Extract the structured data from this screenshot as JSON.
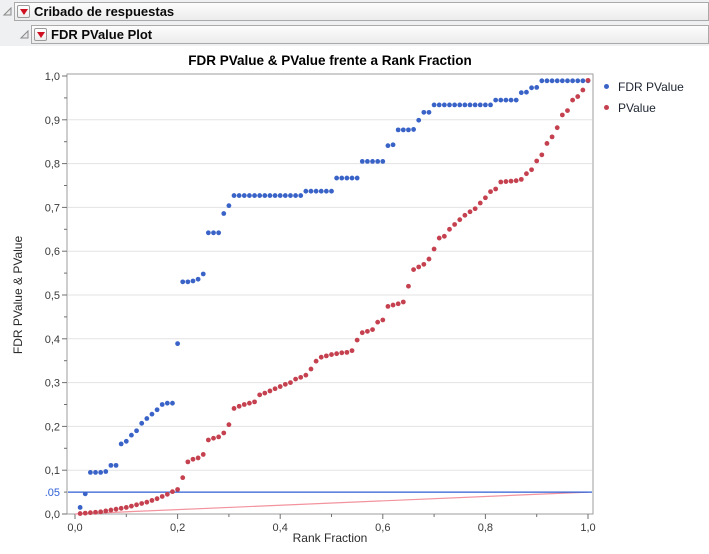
{
  "headers": {
    "level1": "Cribado de respuestas",
    "level2": "FDR PValue Plot"
  },
  "chart_data": {
    "type": "scatter",
    "title": "FDR PValue & PValue frente a Rank Fraction",
    "xlabel": "Rank Fraction",
    "ylabel": "FDR PValue & PValue",
    "xlim": [
      0,
      1
    ],
    "ylim": [
      0,
      1
    ],
    "grid": "horizontal-only",
    "legend_position": "right-top",
    "x_ticks": {
      "values": [
        0,
        0.2,
        0.4,
        0.6,
        0.8,
        1.0
      ],
      "labels": [
        "0,0",
        "0,2",
        "0,4",
        "0,6",
        "0,8",
        "1,0"
      ],
      "minor_step": 0.1
    },
    "y_ticks": {
      "values": [
        0,
        0.1,
        0.2,
        0.3,
        0.4,
        0.5,
        0.6,
        0.7,
        0.8,
        0.9,
        1.0
      ],
      "labels": [
        "0,0",
        "0,1",
        "0,2",
        "0,3",
        "0,4",
        "0,5",
        "0,6",
        "0,7",
        "0,8",
        "0,9",
        "1,0"
      ],
      "minor_step": 0.05
    },
    "x_note": "both series plotted at rank fraction x = i/100 for i = 1..100",
    "series": [
      {
        "name": "FDR PValue",
        "color": "#3A63C8",
        "x_step": 0.01,
        "values": [
          0.015,
          0.046,
          0.095,
          0.095,
          0.095,
          0.097,
          0.111,
          0.111,
          0.16,
          0.166,
          0.18,
          0.19,
          0.207,
          0.218,
          0.228,
          0.238,
          0.25,
          0.253,
          0.253,
          0.389,
          0.53,
          0.53,
          0.532,
          0.536,
          0.548,
          0.642,
          0.642,
          0.642,
          0.686,
          0.704,
          0.727,
          0.727,
          0.727,
          0.727,
          0.727,
          0.727,
          0.727,
          0.727,
          0.727,
          0.727,
          0.727,
          0.727,
          0.727,
          0.727,
          0.737,
          0.737,
          0.737,
          0.737,
          0.737,
          0.737,
          0.767,
          0.767,
          0.767,
          0.767,
          0.767,
          0.805,
          0.805,
          0.805,
          0.805,
          0.805,
          0.841,
          0.843,
          0.877,
          0.877,
          0.877,
          0.878,
          0.899,
          0.917,
          0.917,
          0.934,
          0.934,
          0.934,
          0.934,
          0.934,
          0.934,
          0.934,
          0.934,
          0.934,
          0.934,
          0.934,
          0.934,
          0.945,
          0.945,
          0.945,
          0.945,
          0.945,
          0.962,
          0.963,
          0.973,
          0.974,
          0.989,
          0.989,
          0.989,
          0.989,
          0.989,
          0.989,
          0.989,
          0.989,
          0.989,
          0.989
        ]
      },
      {
        "name": "PValue",
        "color": "#C5414F",
        "x_step": 0.01,
        "values": [
          0.001,
          0.002,
          0.003,
          0.004,
          0.005,
          0.007,
          0.009,
          0.011,
          0.013,
          0.015,
          0.018,
          0.021,
          0.024,
          0.027,
          0.031,
          0.035,
          0.04,
          0.045,
          0.051,
          0.056,
          0.083,
          0.119,
          0.125,
          0.128,
          0.136,
          0.169,
          0.173,
          0.176,
          0.185,
          0.204,
          0.241,
          0.246,
          0.25,
          0.253,
          0.256,
          0.272,
          0.276,
          0.281,
          0.286,
          0.291,
          0.296,
          0.3,
          0.308,
          0.312,
          0.317,
          0.331,
          0.349,
          0.358,
          0.361,
          0.364,
          0.366,
          0.368,
          0.369,
          0.373,
          0.397,
          0.414,
          0.417,
          0.421,
          0.438,
          0.443,
          0.474,
          0.477,
          0.48,
          0.484,
          0.52,
          0.558,
          0.564,
          0.57,
          0.582,
          0.605,
          0.63,
          0.634,
          0.65,
          0.661,
          0.672,
          0.682,
          0.69,
          0.697,
          0.71,
          0.722,
          0.736,
          0.742,
          0.758,
          0.759,
          0.76,
          0.761,
          0.764,
          0.777,
          0.786,
          0.806,
          0.82,
          0.846,
          0.861,
          0.882,
          0.911,
          0.921,
          0.945,
          0.953,
          0.968,
          0.99
        ]
      }
    ],
    "reference_lines": [
      {
        "type": "horizontal",
        "y": 0.05,
        "label": ".05",
        "color": "#2E5FD6"
      },
      {
        "type": "segment",
        "x1": 0,
        "y1": 0,
        "x2": 1,
        "y2": 0.05,
        "color": "#F2939E"
      }
    ]
  }
}
